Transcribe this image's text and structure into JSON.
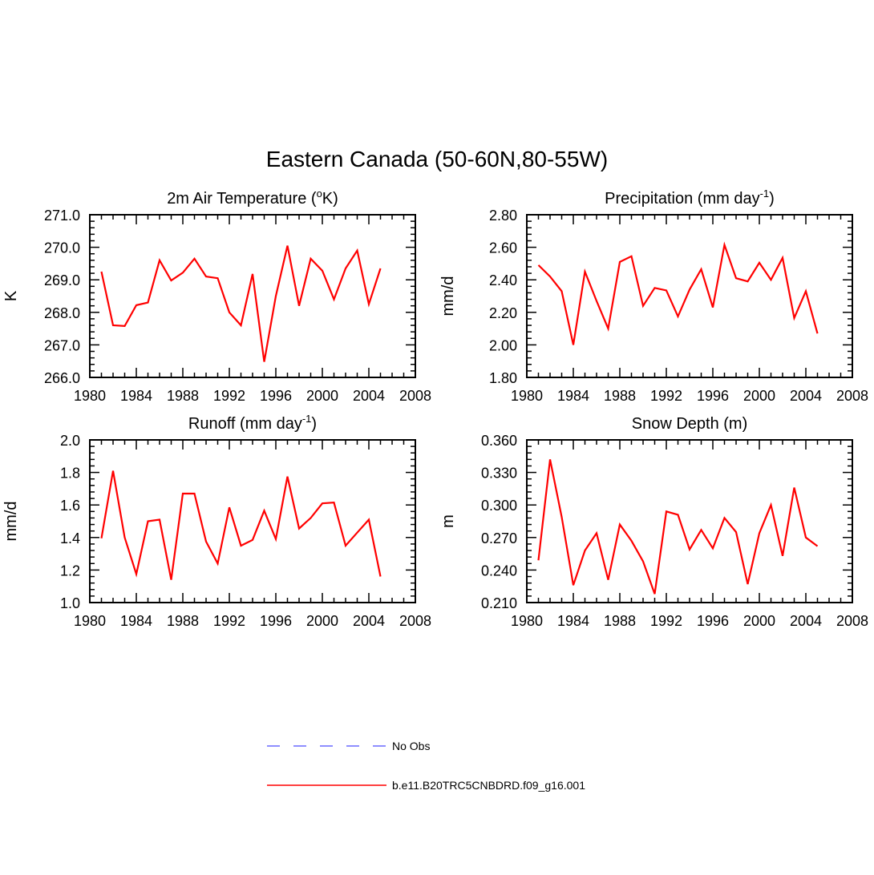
{
  "figure": {
    "title": "Eastern Canada (50-60N,80-55W)",
    "line_color": "#ff0000",
    "obs_color": "#6a6aff"
  },
  "legend": {
    "placement": "bottom-center",
    "entries": [
      {
        "label": "No Obs",
        "style": "dashed",
        "color": "#6a6aff"
      },
      {
        "label": "b.e11.B20TRC5CNBDRD.f09_g16.001",
        "style": "solid",
        "color": "#ff0000"
      }
    ]
  },
  "chart_data": [
    {
      "type": "line",
      "title": "2m Air Temperature (",
      "title_sup": "o",
      "title_tail": "K)",
      "xlabel": "",
      "ylabel": "K",
      "xlim": [
        1980,
        2008
      ],
      "ylim": [
        266.0,
        271.0
      ],
      "xticks": [
        1980,
        1984,
        1988,
        1992,
        1996,
        2000,
        2004,
        2008
      ],
      "yticks": [
        "266.0",
        "267.0",
        "268.0",
        "269.0",
        "270.0",
        "271.0"
      ],
      "grid": false,
      "x": [
        1981,
        1982,
        1983,
        1984,
        1985,
        1986,
        1987,
        1988,
        1989,
        1990,
        1991,
        1992,
        1993,
        1994,
        1995,
        1996,
        1997,
        1998,
        1999,
        2000,
        2001,
        2002,
        2003,
        2004,
        2005
      ],
      "series": [
        {
          "name": "b.e11.B20TRC5CNBDRD.f09_g16.001",
          "values": [
            269.25,
            267.6,
            267.58,
            268.22,
            268.3,
            269.6,
            268.98,
            269.22,
            269.65,
            269.1,
            269.05,
            268.0,
            267.6,
            269.18,
            266.48,
            268.5,
            270.05,
            268.2,
            269.65,
            269.28,
            268.4,
            269.35,
            269.9,
            268.25,
            269.35
          ]
        }
      ]
    },
    {
      "type": "line",
      "title": "Precipitation (mm day",
      "title_sup": "-1",
      "title_tail": ")",
      "xlabel": "",
      "ylabel": "mm/d",
      "xlim": [
        1980,
        2008
      ],
      "ylim": [
        1.8,
        2.8
      ],
      "xticks": [
        1980,
        1984,
        1988,
        1992,
        1996,
        2000,
        2004,
        2008
      ],
      "yticks": [
        "1.80",
        "2.00",
        "2.20",
        "2.40",
        "2.60",
        "2.80"
      ],
      "grid": false,
      "x": [
        1981,
        1982,
        1983,
        1984,
        1985,
        1986,
        1987,
        1988,
        1989,
        1990,
        1991,
        1992,
        1993,
        1994,
        1995,
        1996,
        1997,
        1998,
        1999,
        2000,
        2001,
        2002,
        2003,
        2004,
        2005
      ],
      "series": [
        {
          "name": "b.e11.B20TRC5CNBDRD.f09_g16.001",
          "values": [
            2.49,
            2.42,
            2.33,
            2.0,
            2.45,
            2.27,
            2.1,
            2.51,
            2.545,
            2.24,
            2.35,
            2.335,
            2.175,
            2.34,
            2.465,
            2.23,
            2.615,
            2.41,
            2.39,
            2.505,
            2.4,
            2.535,
            2.165,
            2.33,
            2.07
          ]
        }
      ]
    },
    {
      "type": "line",
      "title": "Runoff (mm day",
      "title_sup": "-1",
      "title_tail": ")",
      "xlabel": "",
      "ylabel": "mm/d",
      "xlim": [
        1980,
        2008
      ],
      "ylim": [
        1.0,
        2.0
      ],
      "xticks": [
        1980,
        1984,
        1988,
        1992,
        1996,
        2000,
        2004,
        2008
      ],
      "yticks": [
        "1.0",
        "1.2",
        "1.4",
        "1.6",
        "1.8",
        "2.0"
      ],
      "grid": false,
      "x": [
        1981,
        1982,
        1983,
        1984,
        1985,
        1986,
        1987,
        1988,
        1989,
        1990,
        1991,
        1992,
        1993,
        1994,
        1995,
        1996,
        1997,
        1998,
        1999,
        2000,
        2001,
        2002,
        2003,
        2004,
        2005
      ],
      "series": [
        {
          "name": "b.e11.B20TRC5CNBDRD.f09_g16.001",
          "values": [
            1.395,
            1.81,
            1.4,
            1.175,
            1.5,
            1.51,
            1.14,
            1.67,
            1.67,
            1.375,
            1.24,
            1.585,
            1.35,
            1.385,
            1.565,
            1.39,
            1.775,
            1.455,
            1.52,
            1.61,
            1.615,
            1.35,
            1.43,
            1.51,
            1.16
          ]
        }
      ]
    },
    {
      "type": "line",
      "title": "Snow Depth (m)",
      "title_sup": "",
      "title_tail": "",
      "xlabel": "",
      "ylabel": "m",
      "xlim": [
        1980,
        2008
      ],
      "ylim": [
        0.21,
        0.36
      ],
      "xticks": [
        1980,
        1984,
        1988,
        1992,
        1996,
        2000,
        2004,
        2008
      ],
      "yticks": [
        "0.210",
        "0.240",
        "0.270",
        "0.300",
        "0.330",
        "0.360"
      ],
      "grid": false,
      "x": [
        1981,
        1982,
        1983,
        1984,
        1985,
        1986,
        1987,
        1988,
        1989,
        1990,
        1991,
        1992,
        1993,
        1994,
        1995,
        1996,
        1997,
        1998,
        1999,
        2000,
        2001,
        2002,
        2003,
        2004,
        2005
      ],
      "series": [
        {
          "name": "b.e11.B20TRC5CNBDRD.f09_g16.001",
          "values": [
            0.249,
            0.342,
            0.289,
            0.226,
            0.258,
            0.274,
            0.231,
            0.282,
            0.267,
            0.248,
            0.218,
            0.294,
            0.291,
            0.259,
            0.277,
            0.26,
            0.288,
            0.275,
            0.227,
            0.274,
            0.3,
            0.253,
            0.316,
            0.27,
            0.262
          ]
        }
      ]
    }
  ]
}
